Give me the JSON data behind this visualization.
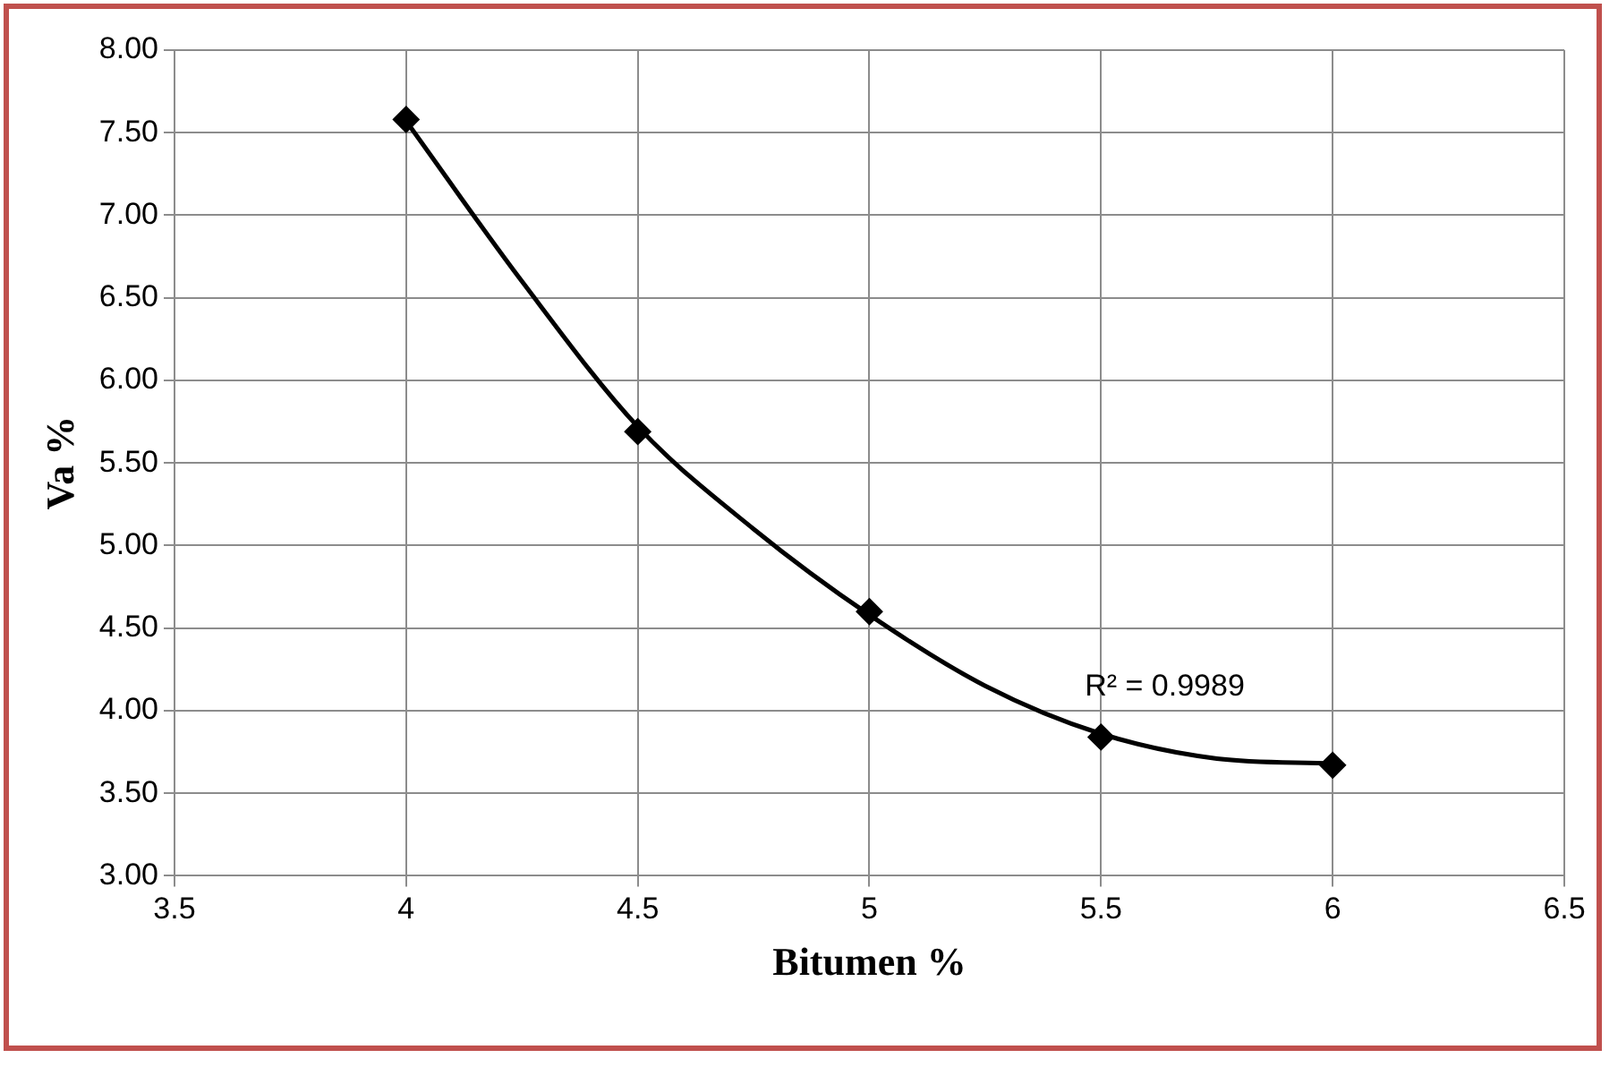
{
  "chart_data": {
    "type": "scatter",
    "xlabel": "Bitumen %",
    "ylabel": "Va %",
    "x": [
      4,
      4.5,
      5,
      5.5,
      6
    ],
    "series": [
      {
        "color": "#000000",
        "marker": "diamond",
        "values": [
          7.58,
          5.69,
          4.6,
          3.84,
          3.67
        ]
      },
      {
        "type": "line",
        "color": "#000000",
        "marker": "none",
        "x": [
          4,
          4.25,
          4.5,
          4.75,
          5,
          5.25,
          5.5,
          5.75,
          6
        ],
        "values": [
          7.57,
          6.6,
          5.72,
          5.1,
          4.58,
          4.15,
          3.86,
          3.71,
          3.68
        ]
      }
    ],
    "xlim": [
      3.5,
      6.5
    ],
    "xticks": [
      3.5,
      4,
      4.5,
      5,
      5.5,
      6,
      6.5
    ],
    "ylim": [
      3,
      8
    ],
    "yticks": [
      {
        "value": 3,
        "label": "3.00"
      },
      {
        "value": 3.5,
        "label": "3.50"
      },
      {
        "value": 4,
        "label": "4.00"
      },
      {
        "value": 4.5,
        "label": "4.50"
      },
      {
        "value": 5,
        "label": "5.00"
      },
      {
        "value": 5.5,
        "label": "5.50"
      },
      {
        "value": 6,
        "label": "6.00"
      },
      {
        "value": 6.5,
        "label": "6.50"
      },
      {
        "value": 7,
        "label": "7.00"
      },
      {
        "value": 7.5,
        "label": "7.50"
      },
      {
        "value": 8,
        "label": "8.00"
      }
    ],
    "grid": true,
    "legend": false,
    "annotations": [
      "R² = 0.9989"
    ]
  }
}
